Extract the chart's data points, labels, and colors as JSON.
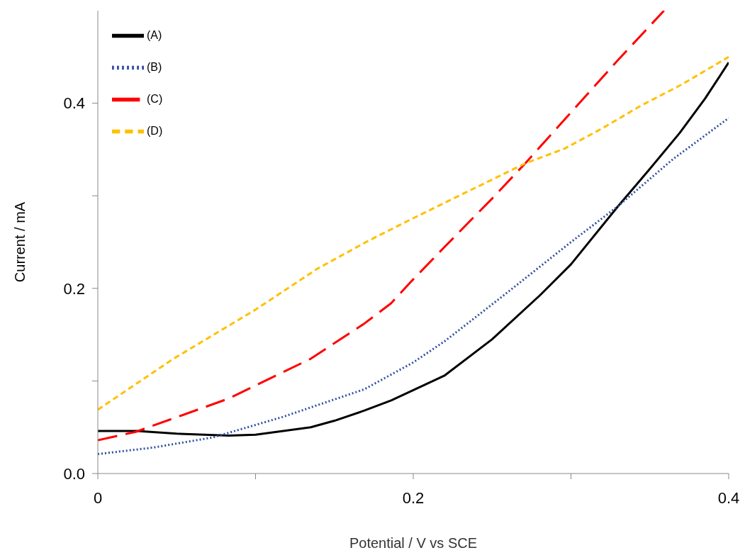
{
  "chart_data": {
    "type": "line",
    "xlabel": "Potential / V vs SCE",
    "ylabel": "Current / mA",
    "xlim": [
      0,
      0.4
    ],
    "ylim": [
      0,
      0.5
    ],
    "xticks": [
      0,
      {
        "value": 0.1,
        "label": null
      },
      0.2,
      {
        "value": 0.3,
        "label": null
      },
      0.4
    ],
    "yticks": [
      {
        "value": 0,
        "label": "0.0"
      },
      {
        "value": 0.1,
        "label": null
      },
      0.2,
      {
        "value": 0.3,
        "label": null
      },
      0.4
    ],
    "grid": false,
    "legend": "top left",
    "marker": "none",
    "series": [
      {
        "name": "(A)",
        "color": "#000000",
        "line_style": "solid",
        "x": [
          0,
          0.025,
          0.05,
          0.083,
          0.1,
          0.135,
          0.15,
          0.169,
          0.186,
          0.2,
          0.22,
          0.25,
          0.28,
          0.3,
          0.33,
          0.35,
          0.369,
          0.385,
          0.4
        ],
        "values": [
          0.046,
          0.046,
          0.043,
          0.041,
          0.042,
          0.05,
          0.057,
          0.068,
          0.079,
          0.09,
          0.106,
          0.145,
          0.192,
          0.226,
          0.289,
          0.329,
          0.368,
          0.405,
          0.444
        ]
      },
      {
        "name": "(B)",
        "color": "#2f4f9f",
        "line_style": "dotted",
        "x": [
          0,
          0.035,
          0.073,
          0.117,
          0.169,
          0.2,
          0.22,
          0.257,
          0.3,
          0.33,
          0.365,
          0.4
        ],
        "values": [
          0.021,
          0.028,
          0.039,
          0.061,
          0.091,
          0.12,
          0.143,
          0.192,
          0.25,
          0.289,
          0.34,
          0.384
        ]
      },
      {
        "name": "(C)",
        "color": "#ff0000",
        "line_style": "dashed",
        "x": [
          0,
          0.024,
          0.083,
          0.135,
          0.169,
          0.186,
          0.199,
          0.22,
          0.25,
          0.271,
          0.3,
          0.33,
          0.359
        ],
        "values": [
          0.036,
          0.045,
          0.081,
          0.124,
          0.162,
          0.184,
          0.208,
          0.245,
          0.297,
          0.335,
          0.39,
          0.447,
          0.5
        ]
      },
      {
        "name": "(D)",
        "color": "#ffc000",
        "line_style": "dashed",
        "x": [
          0,
          0.048,
          0.1,
          0.139,
          0.17,
          0.199,
          0.235,
          0.271,
          0.296,
          0.32,
          0.344,
          0.37,
          0.4
        ],
        "values": [
          0.069,
          0.124,
          0.177,
          0.221,
          0.25,
          0.275,
          0.305,
          0.335,
          0.351,
          0.373,
          0.397,
          0.42,
          0.45
        ]
      }
    ]
  }
}
